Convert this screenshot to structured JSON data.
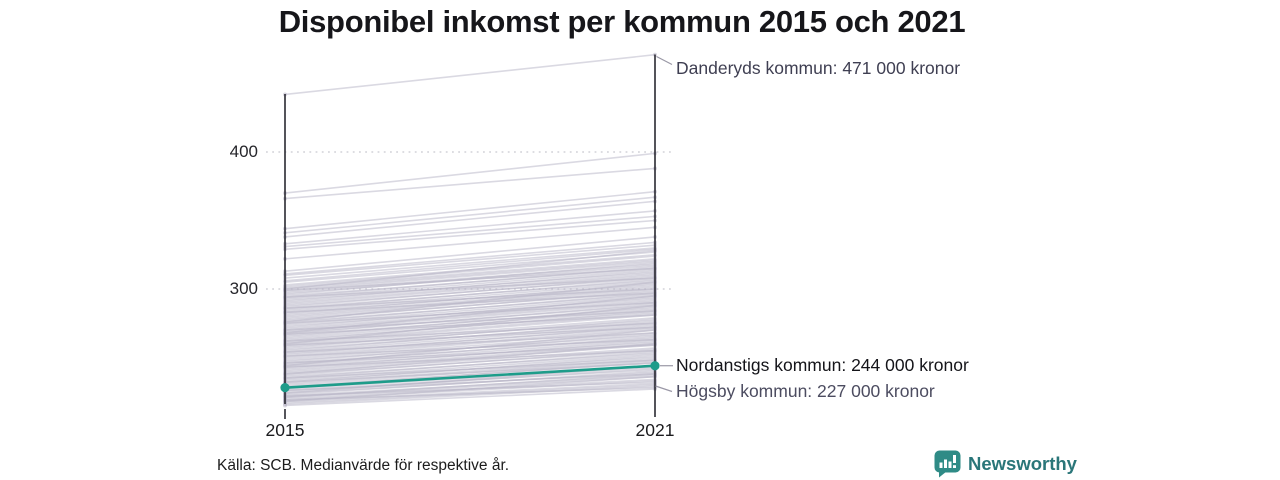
{
  "title": "Disponibel inkomst per kommun 2015 och 2021",
  "source_note": "Källa: SCB. Medianvärde för respektive år.",
  "branding": {
    "logo_text": "Newsworthy"
  },
  "colors": {
    "highlight": "#1e9c8a",
    "line_gray": "#b7b4c6",
    "axis": "#1c1c24",
    "grid": "#d2d2d8",
    "connector": "#9a98a6",
    "brand_teal": "#2f8b86",
    "brand_text": "#2a7679"
  },
  "chart_data": {
    "type": "line",
    "subtype": "slope",
    "title": "Disponibel inkomst per kommun 2015 och 2021",
    "unit": "tusen kronor",
    "x": [
      2015,
      2021
    ],
    "x_tick_labels": [
      "2015",
      "2021"
    ],
    "y_ticks": [
      400,
      300
    ],
    "y_tick_labels": [
      "400",
      "300"
    ],
    "ylim": [
      210,
      480
    ],
    "grid": "dotted horizontal lines at y=300 and y=400",
    "legend": "none",
    "annotations": [
      {
        "role": "max",
        "kommun": "Danderyds kommun",
        "value_2021": 471,
        "text": "Danderyds kommun: 471 000 kronor"
      },
      {
        "role": "highlight",
        "kommun": "Nordanstigs kommun",
        "value_2021": 244,
        "text": "Nordanstigs kommun: 244 000 kronor"
      },
      {
        "role": "min",
        "kommun": "Högsby kommun",
        "value_2021": 227,
        "text": "Högsby kommun: 227 000 kronor"
      }
    ],
    "highlight": {
      "name": "Nordanstigs kommun",
      "values": [
        228,
        244
      ]
    },
    "lines_2015_2021": [
      [
        442,
        471
      ],
      [
        370,
        399
      ],
      [
        366,
        388
      ],
      [
        344,
        371
      ],
      [
        341,
        367
      ],
      [
        338,
        364
      ],
      [
        333,
        357
      ],
      [
        331,
        353
      ],
      [
        329,
        350
      ],
      [
        322,
        345
      ],
      [
        313,
        338
      ],
      [
        311,
        334
      ],
      [
        310,
        332
      ],
      [
        308,
        330
      ],
      [
        306,
        329
      ],
      [
        305,
        327
      ],
      [
        303,
        325
      ],
      [
        302,
        324
      ],
      [
        301,
        322
      ],
      [
        300,
        321
      ],
      [
        300,
        328
      ],
      [
        299,
        320
      ],
      [
        298,
        318
      ],
      [
        297,
        317
      ],
      [
        296,
        319
      ],
      [
        295,
        315
      ],
      [
        294,
        316
      ],
      [
        293,
        314
      ],
      [
        292,
        312
      ],
      [
        291,
        313
      ],
      [
        290,
        311
      ],
      [
        294,
        308
      ],
      [
        299,
        315
      ],
      [
        289,
        310
      ],
      [
        288,
        308
      ],
      [
        287,
        309
      ],
      [
        286,
        306
      ],
      [
        285,
        307
      ],
      [
        284,
        305
      ],
      [
        283,
        303
      ],
      [
        282,
        304
      ],
      [
        281,
        302
      ],
      [
        280,
        301
      ],
      [
        286,
        300
      ],
      [
        283,
        297
      ],
      [
        279,
        300
      ],
      [
        278,
        298
      ],
      [
        277,
        299
      ],
      [
        276,
        296
      ],
      [
        275,
        297
      ],
      [
        274,
        295
      ],
      [
        273,
        293
      ],
      [
        272,
        294
      ],
      [
        271,
        292
      ],
      [
        270,
        291
      ],
      [
        276,
        305
      ],
      [
        270,
        284
      ],
      [
        275,
        290
      ],
      [
        269,
        290
      ],
      [
        268,
        288
      ],
      [
        267,
        289
      ],
      [
        266,
        286
      ],
      [
        265,
        287
      ],
      [
        264,
        285
      ],
      [
        263,
        283
      ],
      [
        262,
        284
      ],
      [
        261,
        282
      ],
      [
        260,
        281
      ],
      [
        268,
        295
      ],
      [
        262,
        275
      ],
      [
        267,
        281
      ],
      [
        259,
        279
      ],
      [
        258,
        277
      ],
      [
        257,
        278
      ],
      [
        256,
        275
      ],
      [
        255,
        276
      ],
      [
        254,
        274
      ],
      [
        253,
        272
      ],
      [
        252,
        273
      ],
      [
        251,
        271
      ],
      [
        250,
        270
      ],
      [
        260,
        288
      ],
      [
        254,
        268
      ],
      [
        259,
        272
      ],
      [
        249,
        268
      ],
      [
        248,
        266
      ],
      [
        247,
        267
      ],
      [
        246,
        264
      ],
      [
        245,
        265
      ],
      [
        244,
        263
      ],
      [
        243,
        261
      ],
      [
        242,
        262
      ],
      [
        241,
        260
      ],
      [
        240,
        259
      ],
      [
        244,
        270
      ],
      [
        246,
        259
      ],
      [
        251,
        263
      ],
      [
        239,
        257
      ],
      [
        238,
        255
      ],
      [
        237,
        256
      ],
      [
        236,
        253
      ],
      [
        235,
        254
      ],
      [
        234,
        252
      ],
      [
        233,
        250
      ],
      [
        232,
        251
      ],
      [
        231,
        249
      ],
      [
        230,
        248
      ],
      [
        238,
        260
      ],
      [
        235,
        248
      ],
      [
        243,
        255
      ],
      [
        229,
        246
      ],
      [
        227,
        243
      ],
      [
        226,
        241
      ],
      [
        225,
        242
      ],
      [
        224,
        239
      ],
      [
        223,
        240
      ],
      [
        222,
        237
      ],
      [
        221,
        236
      ],
      [
        220,
        234
      ],
      [
        232,
        246
      ],
      [
        226,
        238
      ],
      [
        222,
        232
      ],
      [
        219,
        233
      ],
      [
        218,
        231
      ],
      [
        217,
        230
      ],
      [
        216,
        229
      ],
      [
        219,
        228
      ],
      [
        218,
        236
      ],
      [
        221,
        238
      ],
      [
        224,
        244
      ],
      [
        228,
        247
      ],
      [
        215,
        227
      ]
    ]
  }
}
